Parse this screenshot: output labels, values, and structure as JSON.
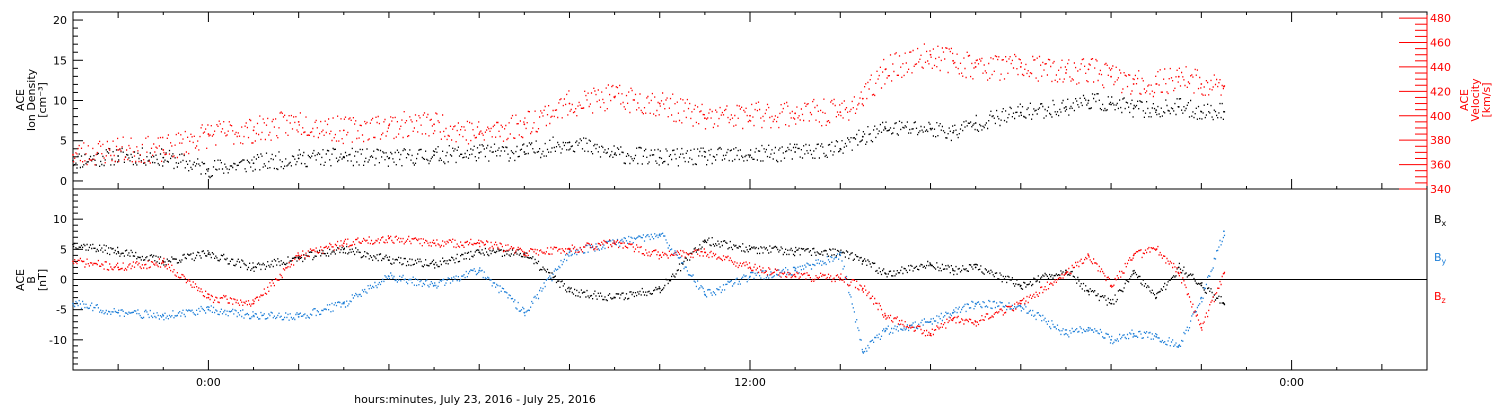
{
  "chart_data": [
    {
      "type": "scatter",
      "title": "",
      "xlabel": "hours:minutes, July 23, 2016 - July 25, 2016",
      "x_tick_labels": [
        "0:00",
        "12:00",
        "0:00"
      ],
      "x_tick_hours": [
        0,
        12,
        24
      ],
      "xlim_hours": [
        -3,
        27
      ],
      "left_axis": {
        "label_lines": [
          "ACE",
          "Ion Density",
          "[cm⁻³]"
        ],
        "ylim": [
          -1,
          21
        ],
        "ticks": [
          0,
          5,
          10,
          15,
          20
        ]
      },
      "right_axis": {
        "label_lines": [
          "ACE",
          "Velocity",
          "[km/s]"
        ],
        "ylim": [
          340,
          485
        ],
        "ticks": [
          340,
          360,
          380,
          400,
          420,
          440,
          460,
          480
        ],
        "color": "#ff0000"
      },
      "series": [
        {
          "color": "#000000",
          "axis": "left",
          "x": [
            -3,
            -2,
            -1,
            0,
            1,
            2,
            3,
            4,
            5,
            6,
            7,
            8,
            9,
            10,
            11,
            12,
            13,
            14,
            14.5,
            15,
            16,
            16.5,
            17,
            18,
            19,
            19.5,
            20,
            20.5,
            21,
            21.5,
            22,
            22.5
          ],
          "y": [
            2.5,
            3.1,
            2.9,
            1.5,
            2.2,
            2.8,
            3.0,
            2.8,
            3.2,
            3.5,
            3.6,
            4.8,
            3.3,
            2.9,
            3.0,
            3.2,
            3.6,
            4.0,
            5.5,
            6.5,
            6.5,
            6.0,
            7.2,
            8.5,
            9.2,
            10.0,
            9.5,
            9.0,
            8.8,
            9.2,
            8.6,
            8.6
          ]
        },
        {
          "color": "#ff0000",
          "axis": "right",
          "x": [
            -3,
            -2,
            -1,
            0,
            1,
            2,
            3,
            4,
            5,
            6,
            7,
            8,
            9,
            10,
            11,
            12,
            13,
            14,
            14.5,
            15,
            16,
            16.5,
            17,
            18,
            19,
            19.5,
            20,
            20.5,
            21,
            21.5,
            22,
            22.5
          ],
          "y": [
            368,
            372,
            372,
            385,
            388,
            395,
            388,
            392,
            393,
            385,
            393,
            410,
            415,
            410,
            398,
            400,
            402,
            403,
            414,
            438,
            450,
            445,
            440,
            440,
            435,
            438,
            432,
            426,
            426,
            432,
            426,
            424
          ]
        }
      ]
    },
    {
      "type": "scatter",
      "title": "",
      "xlabel": "hours:minutes, July 23, 2016 - July 25, 2016",
      "y_axis": {
        "label_lines": [
          "ACE",
          "B",
          "[nT]"
        ],
        "ylim": [
          -15,
          15
        ],
        "ticks": [
          -10,
          -5,
          0,
          5,
          10
        ]
      },
      "zero_line": true,
      "legend_position": "right",
      "series": [
        {
          "name": "B",
          "sub": "x",
          "color": "#000000",
          "x": [
            -3,
            -2,
            -1,
            0,
            1,
            2,
            3,
            4,
            5,
            6,
            7,
            8,
            9,
            10,
            11,
            12,
            13,
            14,
            14.5,
            15,
            16,
            16.5,
            17,
            18,
            19,
            19.5,
            20,
            20.5,
            21,
            21.5,
            22,
            22.5
          ],
          "y": [
            5.8,
            4.6,
            3.0,
            4.2,
            2.0,
            3.5,
            5.0,
            3.2,
            2.5,
            4.5,
            4.2,
            -2.0,
            -3.0,
            -1.5,
            6.5,
            5.0,
            4.6,
            4.5,
            3.0,
            1.0,
            2.5,
            1.5,
            2.0,
            -1.0,
            1.5,
            -2.0,
            -4.0,
            1.0,
            -3.0,
            2.0,
            -1.0,
            -4.0
          ]
        },
        {
          "name": "B",
          "sub": "y",
          "color": "#1e7fd8",
          "x": [
            -3,
            -2,
            -1,
            0,
            1,
            2,
            3,
            4,
            5,
            6,
            7,
            8,
            9,
            10,
            11,
            12,
            13,
            14,
            14.5,
            15,
            16,
            16.5,
            17,
            18,
            19,
            19.5,
            20,
            20.5,
            21,
            21.5,
            22,
            22.5
          ],
          "y": [
            -4.0,
            -5.5,
            -6.0,
            -5.0,
            -6.0,
            -6.2,
            -4.0,
            0.5,
            -1.0,
            1.5,
            -5.5,
            4.5,
            6.0,
            7.5,
            -2.5,
            0.5,
            1.5,
            4.0,
            -12.0,
            -8.5,
            -7.0,
            -5.5,
            -4.0,
            -4.5,
            -9.0,
            -8.0,
            -10.0,
            -9.0,
            -9.5,
            -11.0,
            -3.0,
            8.0
          ]
        },
        {
          "name": "B",
          "sub": "z",
          "color": "#ff0000",
          "x": [
            -3,
            -2,
            -1,
            0,
            1,
            2,
            3,
            4,
            5,
            6,
            7,
            8,
            9,
            10,
            11,
            12,
            13,
            14,
            14.5,
            15,
            16,
            16.5,
            17,
            18,
            19,
            19.5,
            20,
            20.5,
            21,
            21.5,
            22,
            22.5
          ],
          "y": [
            3.0,
            2.0,
            2.8,
            -3.0,
            -4.0,
            4.0,
            6.0,
            6.8,
            6.0,
            6.0,
            4.5,
            5.0,
            6.0,
            4.0,
            4.5,
            2.0,
            0.5,
            0.2,
            -1.5,
            -6.0,
            -9.0,
            -6.5,
            -7.0,
            -4.0,
            1.0,
            4.0,
            -1.0,
            4.0,
            5.0,
            1.0,
            -8.0,
            1.0
          ]
        }
      ]
    }
  ]
}
